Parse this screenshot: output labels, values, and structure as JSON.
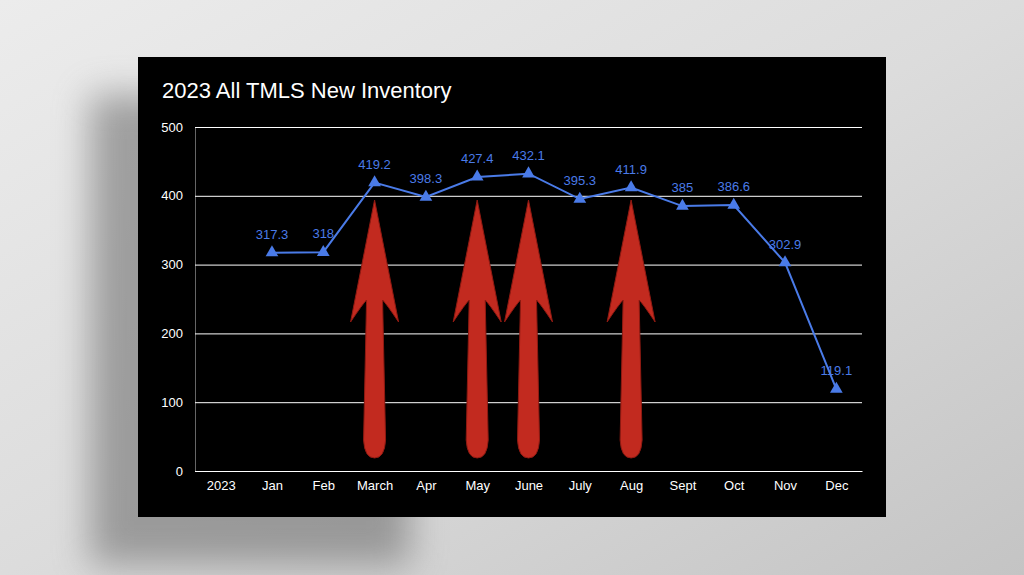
{
  "chart_data": {
    "type": "line",
    "title": "2023 All TMLS New Inventory",
    "categories": [
      "2023",
      "Jan",
      "Feb",
      "March",
      "Apr",
      "May",
      "June",
      "July",
      "Aug",
      "Sept",
      "Oct",
      "Nov",
      "Dec"
    ],
    "values": [
      null,
      317.3,
      318,
      419.2,
      398.3,
      427.4,
      432.1,
      395.3,
      411.9,
      385,
      386.6,
      302.9,
      119.1
    ],
    "color": "#4a7be8",
    "marker": "triangle",
    "ylim": [
      0,
      500
    ],
    "yticks": [
      0,
      100,
      200,
      300,
      400,
      500
    ],
    "grid": true,
    "data_labels": true
  }
}
